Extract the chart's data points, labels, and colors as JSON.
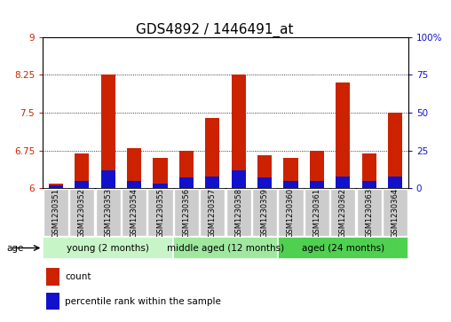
{
  "title": "GDS4892 / 1446491_at",
  "samples": [
    "GSM1230351",
    "GSM1230352",
    "GSM1230353",
    "GSM1230354",
    "GSM1230355",
    "GSM1230356",
    "GSM1230357",
    "GSM1230358",
    "GSM1230359",
    "GSM1230360",
    "GSM1230361",
    "GSM1230362",
    "GSM1230363",
    "GSM1230364"
  ],
  "count_values": [
    6.09,
    6.7,
    8.25,
    6.8,
    6.6,
    6.75,
    7.4,
    8.25,
    6.65,
    6.6,
    6.75,
    8.1,
    6.7,
    7.5
  ],
  "percentile_values": [
    2,
    5,
    12,
    5,
    3,
    7,
    8,
    12,
    7,
    5,
    5,
    8,
    5,
    8
  ],
  "ymin": 6,
  "ymax": 9,
  "yticks": [
    6,
    6.75,
    7.5,
    8.25,
    9
  ],
  "ytick_labels": [
    "6",
    "6.75",
    "7.5",
    "8.25",
    "9"
  ],
  "right_yticks_vals": [
    0,
    25,
    50,
    75,
    100
  ],
  "right_ytick_labels": [
    "0",
    "25",
    "50",
    "75",
    "100%"
  ],
  "groups": [
    {
      "label": "young (2 months)",
      "start": 0,
      "end": 5,
      "color": "#c8f5c8"
    },
    {
      "label": "middle aged (12 months)",
      "start": 5,
      "end": 9,
      "color": "#a0e8a0"
    },
    {
      "label": "aged (24 months)",
      "start": 9,
      "end": 14,
      "color": "#50d050"
    }
  ],
  "age_label": "age",
  "bar_color_count": "#cc2200",
  "bar_color_pct": "#1111cc",
  "bar_width": 0.55,
  "legend_count": "count",
  "legend_pct": "percentile rank within the sample",
  "title_fontsize": 11,
  "ytick_fontsize": 7.5,
  "xtick_fontsize": 6,
  "group_fontsize": 7.5,
  "legend_fontsize": 7.5,
  "sample_bg_color": "#cccccc",
  "sample_border_color": "#ffffff"
}
